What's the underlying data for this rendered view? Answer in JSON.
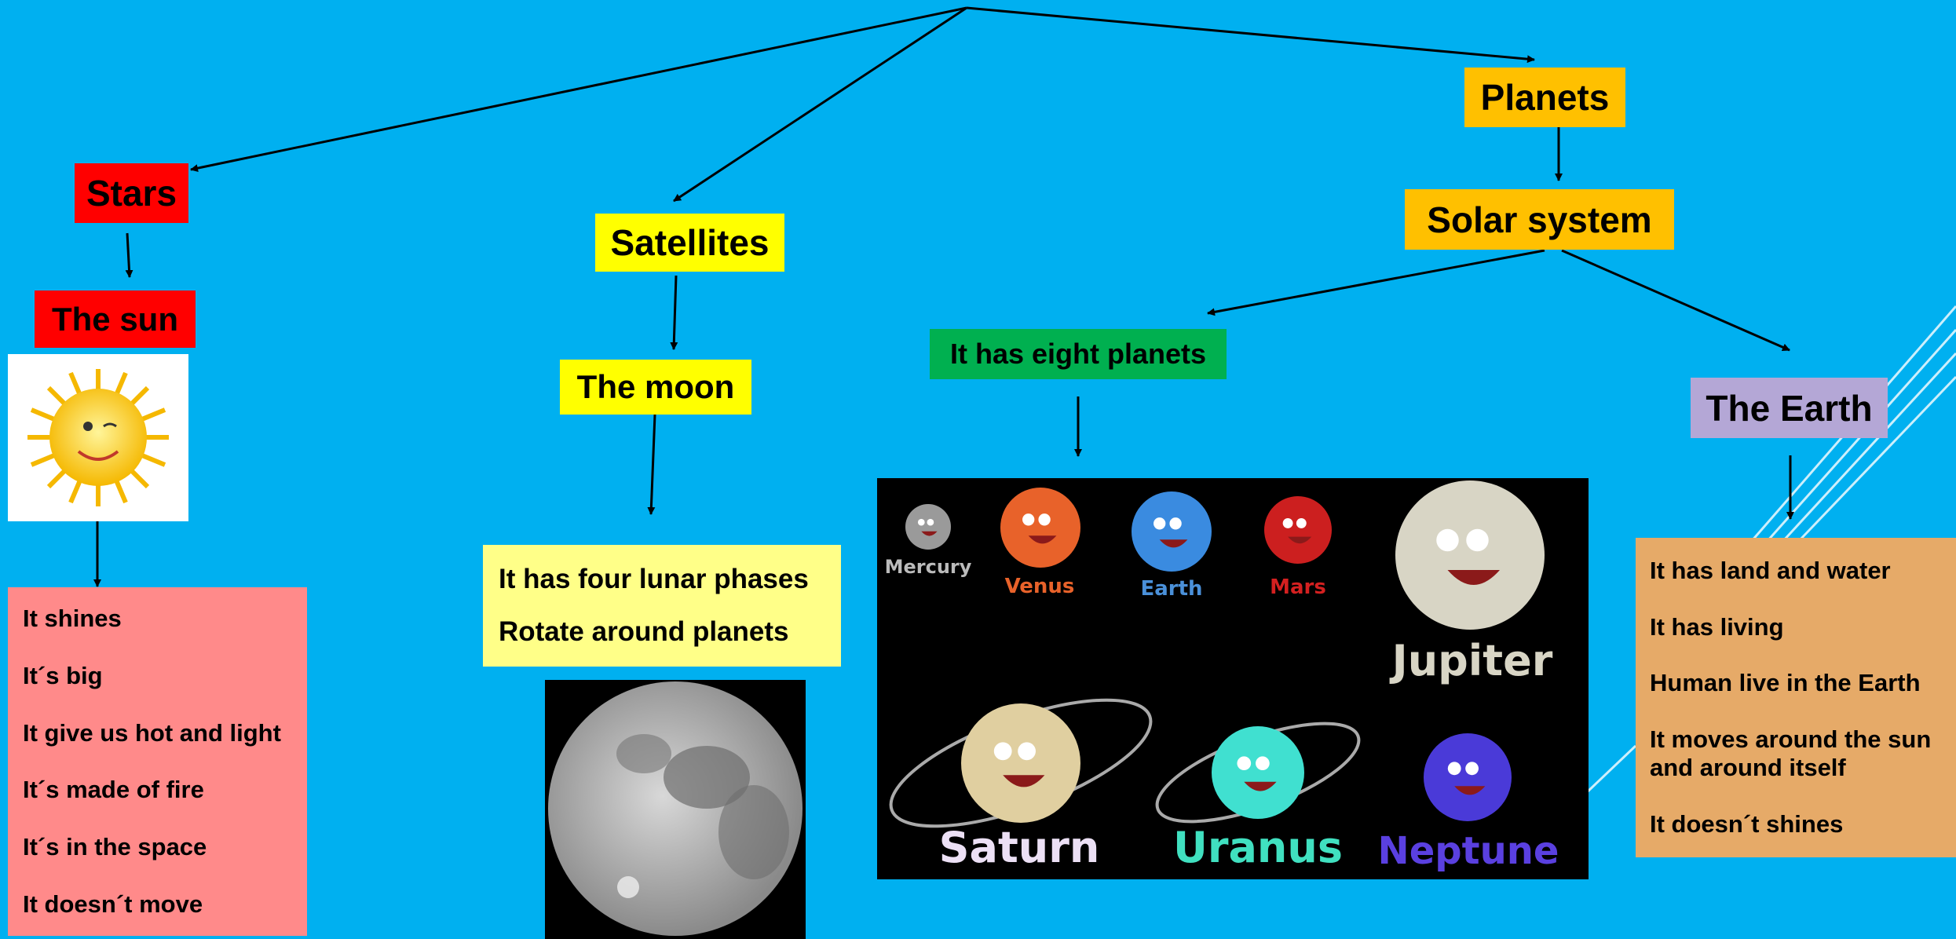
{
  "nodes": [
    {
      "label": "Stars"
    },
    {
      "label": "The sun"
    },
    {
      "label": "Satellites"
    },
    {
      "label": "The moon"
    },
    {
      "label": "Planets"
    },
    {
      "label": "Solar system"
    },
    {
      "label": "It has eight planets"
    },
    {
      "label": "The Earth"
    }
  ],
  "stars_facts": [
    "It shines",
    "It´s big",
    "It give us hot and light",
    "It´s made of fire",
    "It´s in the space",
    "It doesn´t move"
  ],
  "moon_facts": [
    "It has four lunar phases",
    "Rotate around planets"
  ],
  "earth_facts": [
    "It has land and water",
    "It has living",
    "Human live in the Earth",
    "It moves around the sun and around itself",
    "It doesn´t shines"
  ],
  "planet_image_labels": [
    "Mercury",
    "Venus",
    "Earth",
    "Mars",
    "Jupiter",
    "Saturn",
    "Uranus",
    "Neptune"
  ]
}
